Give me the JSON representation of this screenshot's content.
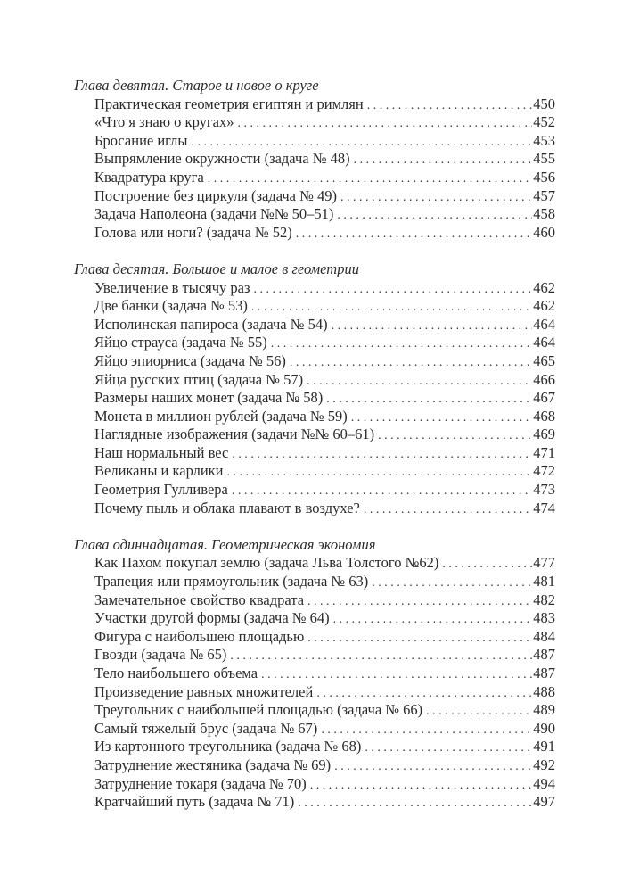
{
  "chapters": [
    {
      "title": "Глава девятая. Старое и новое о круге",
      "entries": [
        {
          "label": "Практическая геометрия египтян и римлян",
          "page": "450"
        },
        {
          "label": "«Что я знаю о кругах»",
          "page": "452"
        },
        {
          "label": "Бросание иглы",
          "page": "453"
        },
        {
          "label": "Выпрямление окружности (задача № 48)",
          "page": "455"
        },
        {
          "label": "Квадратура круга",
          "page": "456"
        },
        {
          "label": "Построение без циркуля (задача № 49)",
          "page": "457"
        },
        {
          "label": "Задача Наполеона (задачи №№ 50–51)",
          "page": "458"
        },
        {
          "label": "Голова или ноги? (задача № 52)",
          "page": "460"
        }
      ]
    },
    {
      "title": "Глава десятая. Большое и малое в геометрии",
      "entries": [
        {
          "label": "Увеличение в тысячу раз",
          "page": "462"
        },
        {
          "label": "Две банки (задача № 53)",
          "page": "462"
        },
        {
          "label": "Исполинская папироса (задача № 54)",
          "page": "464"
        },
        {
          "label": "Яйцо страуса (задача № 55)",
          "page": "464"
        },
        {
          "label": "Яйцо эпиорниса (задача № 56)",
          "page": "465"
        },
        {
          "label": "Яйца русских птиц (задача № 57)",
          "page": "466"
        },
        {
          "label": "Размеры наших монет (задача № 58)",
          "page": "467"
        },
        {
          "label": "Монета в миллион рублей (задача № 59)",
          "page": "468"
        },
        {
          "label": "Наглядные изображения (задачи №№ 60–61)",
          "page": "469"
        },
        {
          "label": "Наш нормальный вес",
          "page": "471"
        },
        {
          "label": "Великаны и карлики",
          "page": "472"
        },
        {
          "label": "Геометрия Гулливера",
          "page": "473"
        },
        {
          "label": "Почему пыль и облака плавают в воздухе?",
          "page": "474"
        }
      ]
    },
    {
      "title": "Глава одиннадцатая. Геометрическая экономия",
      "entries": [
        {
          "label": "Как Пахом покупал землю (задача Льва Толстого №62)",
          "page": "477"
        },
        {
          "label": "Трапеция или прямоугольник (задача № 63)",
          "page": "481"
        },
        {
          "label": "Замечательное свойство квадрата",
          "page": "482"
        },
        {
          "label": "Участки другой формы (задача № 64)",
          "page": "483"
        },
        {
          "label": "Фигура с наибольшею площадью",
          "page": "484"
        },
        {
          "label": "Гвозди (задача № 65)",
          "page": "487"
        },
        {
          "label": "Тело наибольшего объема",
          "page": "487"
        },
        {
          "label": "Произведение равных множителей",
          "page": "488"
        },
        {
          "label": "Треугольник с наибольшей площадью (задача № 66)",
          "page": "489"
        },
        {
          "label": "Самый тяжелый брус (задача № 67)",
          "page": "490"
        },
        {
          "label": "Из картонного треугольника (задача № 68)",
          "page": "491"
        },
        {
          "label": "Затруднение жестяника (задача № 69)",
          "page": "492"
        },
        {
          "label": "Затруднение токаря (задача № 70)",
          "page": "494"
        },
        {
          "label": "Кратчайший путь (задача № 71)",
          "page": "497"
        }
      ]
    }
  ]
}
